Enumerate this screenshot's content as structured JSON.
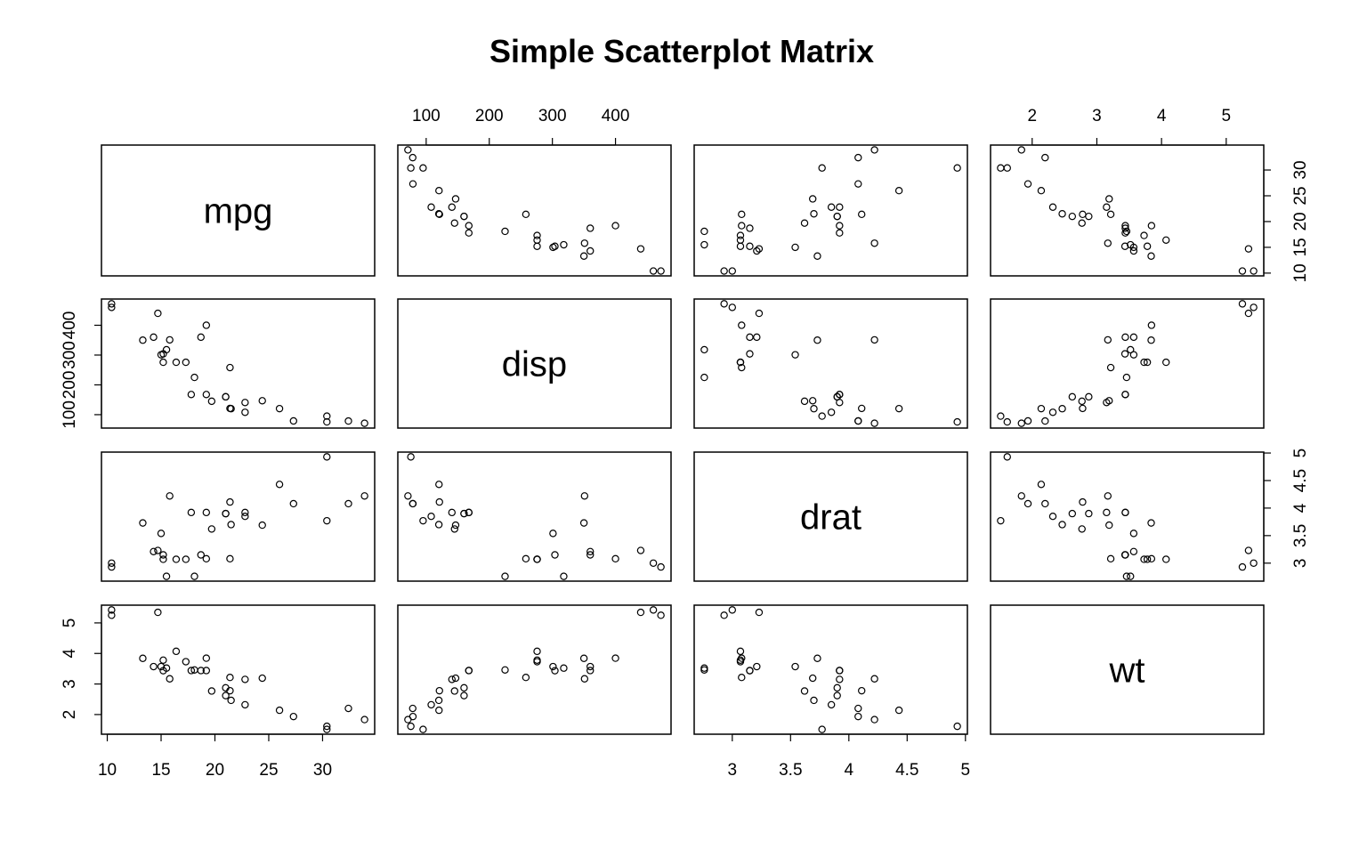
{
  "chart_data": {
    "type": "scatter",
    "layout": "scatterplot-matrix",
    "title": "Simple Scatterplot Matrix",
    "variables": [
      "mpg",
      "disp",
      "drat",
      "wt"
    ],
    "axes": {
      "mpg": {
        "range": [
          10.4,
          33.9
        ],
        "ticks": [
          10,
          15,
          20,
          25,
          30
        ]
      },
      "disp": {
        "range": [
          71.1,
          472
        ],
        "ticks": [
          100,
          200,
          300,
          400
        ]
      },
      "drat": {
        "range": [
          2.76,
          4.93
        ],
        "ticks": [
          3.0,
          3.5,
          4.0,
          4.5,
          5.0
        ]
      },
      "wt": {
        "range": [
          1.513,
          5.424
        ],
        "ticks": [
          2,
          3,
          4,
          5
        ]
      }
    },
    "columns": {
      "mpg": [
        21.0,
        21.0,
        22.8,
        21.4,
        18.7,
        18.1,
        14.3,
        24.4,
        22.8,
        19.2,
        17.8,
        16.4,
        17.3,
        15.2,
        10.4,
        10.4,
        14.7,
        32.4,
        30.4,
        33.9,
        21.5,
        15.5,
        15.2,
        13.3,
        19.2,
        27.3,
        26.0,
        30.4,
        15.8,
        19.7,
        15.0,
        21.4
      ],
      "disp": [
        160,
        160,
        108,
        258,
        360,
        225,
        360,
        146.7,
        140.8,
        167.6,
        167.6,
        275.8,
        275.8,
        275.8,
        472,
        460,
        440,
        78.7,
        75.7,
        71.1,
        120.1,
        318,
        304,
        350,
        400,
        79,
        120.3,
        95.1,
        351,
        145,
        301,
        121
      ],
      "drat": [
        3.9,
        3.9,
        3.85,
        3.08,
        3.15,
        2.76,
        3.21,
        3.69,
        3.92,
        3.92,
        3.92,
        3.07,
        3.07,
        3.07,
        2.93,
        3.0,
        3.23,
        4.08,
        4.93,
        4.22,
        3.7,
        2.76,
        3.15,
        3.73,
        3.08,
        4.08,
        4.43,
        3.77,
        4.22,
        3.62,
        3.54,
        4.11
      ],
      "wt": [
        2.62,
        2.875,
        2.32,
        3.215,
        3.44,
        3.46,
        3.57,
        3.19,
        3.15,
        3.44,
        3.44,
        4.07,
        3.73,
        3.78,
        5.25,
        5.424,
        5.345,
        2.2,
        1.615,
        1.835,
        2.465,
        3.52,
        3.435,
        3.84,
        3.845,
        1.935,
        2.14,
        1.513,
        3.17,
        2.77,
        3.57,
        2.78
      ]
    }
  }
}
